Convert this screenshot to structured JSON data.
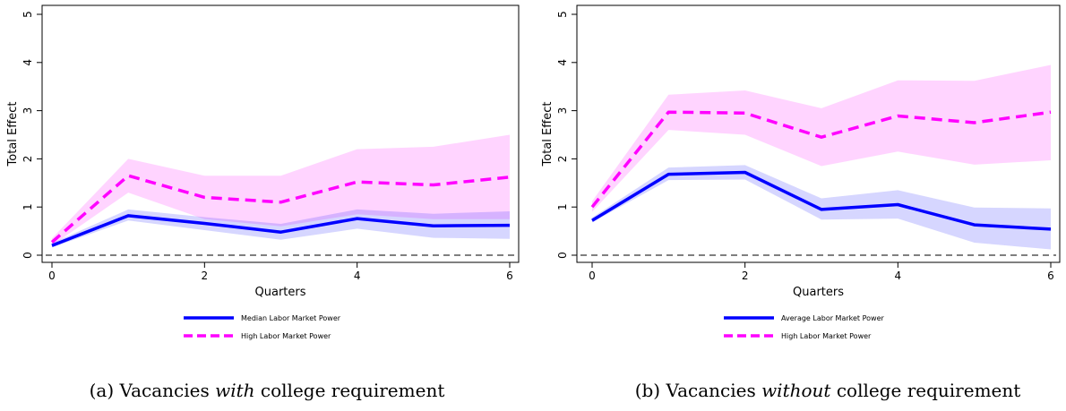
{
  "chart_data": [
    {
      "id": "a",
      "type": "line",
      "xlabel": "Quarters",
      "ylabel": "Total Effect",
      "xlim": [
        0,
        6
      ],
      "ylim": [
        0,
        5
      ],
      "xticks": [
        0,
        2,
        4,
        6
      ],
      "yticks": [
        0,
        1,
        2,
        3,
        4,
        5
      ],
      "grid": false,
      "legend_position": "bottom",
      "x": [
        0,
        1,
        2,
        3,
        4,
        5,
        6
      ],
      "zero_line": 0,
      "series": [
        {
          "name": "Median Labor Market Power",
          "color": "#0000ff",
          "style": "solid",
          "values": [
            0.2,
            0.82,
            0.66,
            0.48,
            0.76,
            0.61,
            0.62
          ],
          "band_lower": [
            0.16,
            0.72,
            0.52,
            0.32,
            0.55,
            0.36,
            0.34
          ],
          "band_upper": [
            0.25,
            0.95,
            0.79,
            0.65,
            0.95,
            0.86,
            0.91
          ]
        },
        {
          "name": "High Labor Market Power",
          "color": "#ff00ff",
          "style": "dashed",
          "values": [
            0.27,
            1.65,
            1.2,
            1.1,
            1.52,
            1.46,
            1.62
          ],
          "band_lower": [
            0.2,
            1.3,
            0.75,
            0.6,
            0.85,
            0.75,
            0.75
          ],
          "band_upper": [
            0.35,
            2.0,
            1.65,
            1.65,
            2.2,
            2.25,
            2.5
          ]
        }
      ],
      "caption": {
        "prefix": "(a) Vacancies ",
        "emphasis": "with",
        "suffix": " college requirement"
      }
    },
    {
      "id": "b",
      "type": "line",
      "xlabel": "Quarters",
      "ylabel": "Total Effect",
      "xlim": [
        0,
        6
      ],
      "ylim": [
        0,
        5
      ],
      "xticks": [
        0,
        2,
        4,
        6
      ],
      "yticks": [
        0,
        1,
        2,
        3,
        4,
        5
      ],
      "grid": false,
      "legend_position": "bottom",
      "x": [
        0,
        1,
        2,
        3,
        4,
        5,
        6
      ],
      "zero_line": 0,
      "series": [
        {
          "name": "Average Labor Market Power",
          "color": "#0000ff",
          "style": "solid",
          "values": [
            0.72,
            1.68,
            1.72,
            0.95,
            1.05,
            0.63,
            0.54
          ],
          "band_lower": [
            0.68,
            1.56,
            1.57,
            0.74,
            0.76,
            0.26,
            0.12
          ],
          "band_upper": [
            0.78,
            1.82,
            1.87,
            1.18,
            1.35,
            0.99,
            0.97
          ]
        },
        {
          "name": "High Labor Market Power",
          "color": "#ff00ff",
          "style": "dashed",
          "values": [
            1.0,
            2.97,
            2.95,
            2.45,
            2.89,
            2.75,
            2.97
          ],
          "band_lower": [
            0.9,
            2.6,
            2.5,
            1.85,
            2.15,
            1.88,
            1.97
          ],
          "band_upper": [
            1.12,
            3.33,
            3.42,
            3.05,
            3.63,
            3.62,
            3.95
          ]
        }
      ],
      "caption": {
        "prefix": "(b) Vacancies ",
        "emphasis": "without",
        "suffix": " college requirement"
      }
    }
  ]
}
